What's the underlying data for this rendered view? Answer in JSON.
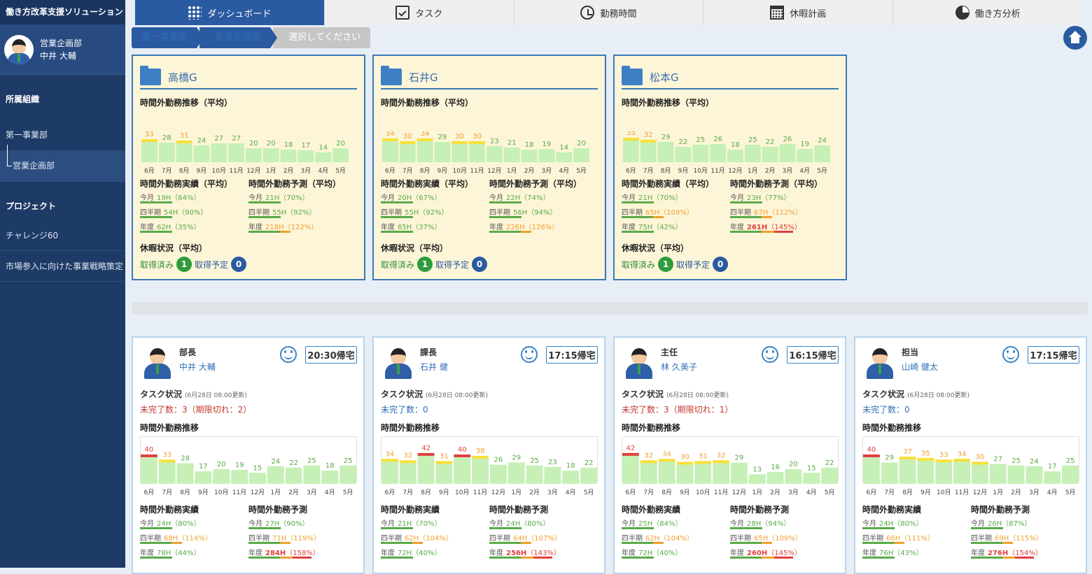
{
  "app": {
    "title": "働き方改革支援ソリューション"
  },
  "user": {
    "dept": "営業企画部",
    "name": "中井 大輔"
  },
  "sidebar": {
    "org_heading": "所属組織",
    "org_items": [
      {
        "label": "第一事業部"
      },
      {
        "label": "営業企画部"
      }
    ],
    "project_heading": "プロジェクト",
    "project_items": [
      {
        "label": "チャレンジ60"
      },
      {
        "label": "市場参入に向けた事業戦略策定"
      }
    ]
  },
  "tabs": [
    {
      "label": "ダッシュボード",
      "icon": "grid-icon"
    },
    {
      "label": "タスク",
      "icon": "task-icon"
    },
    {
      "label": "勤務時間",
      "icon": "clock-icon"
    },
    {
      "label": "休暇計画",
      "icon": "calendar-icon"
    },
    {
      "label": "働き方分析",
      "icon": "pie-chart-icon"
    }
  ],
  "breadcrumb": [
    "第一事業部",
    "営業企画部",
    "選択してください"
  ],
  "labels": {
    "trend_avg": "時間外勤務推移（平均）",
    "actual_avg": "時間外勤務実績（平均）",
    "forecast_avg": "時間外勤務予測（平均）",
    "vacation_avg": "休暇状況（平均）",
    "taken": "取得済み",
    "planned": "取得予定",
    "task_status": "タスク状況",
    "updated": "(6月28日 08:00更新)",
    "trend": "時間外勤務推移",
    "actual": "時間外勤務実績",
    "forecast": "時間外勤務予測",
    "month": "今月",
    "quarter": "四半期",
    "year": "年度"
  },
  "months": [
    "6月",
    "7月",
    "8月",
    "9月",
    "10月",
    "11月",
    "12月",
    "1月",
    "2月",
    "3月",
    "4月",
    "5月"
  ],
  "colors": {
    "green": "#5aaa4a",
    "orange": "#f0a030",
    "red": "#e04040",
    "bar_light": "#c6f0b6",
    "accent": "#2a5aa0"
  },
  "groups": [
    {
      "name": "高橋G",
      "chart_data": {
        "type": "bar",
        "categories": [
          "6月",
          "7月",
          "8月",
          "9月",
          "10月",
          "11月",
          "12月",
          "1月",
          "2月",
          "3月",
          "4月",
          "5月"
        ],
        "values": [
          33,
          28,
          31,
          24,
          27,
          27,
          20,
          20,
          18,
          17,
          14,
          20
        ]
      },
      "actual": [
        {
          "p": "今月",
          "v": "19H",
          "r": "（64%）",
          "lv": "g"
        },
        {
          "p": "四半期",
          "v": "54H",
          "r": "（90%）",
          "lv": "g"
        },
        {
          "p": "年度",
          "v": "62H",
          "r": "（35%）",
          "lv": "g"
        }
      ],
      "forecast": [
        {
          "p": "今月",
          "v": "21H",
          "r": "（70%）",
          "lv": "g"
        },
        {
          "p": "四半期",
          "v": "55H",
          "r": "（92%）",
          "lv": "g"
        },
        {
          "p": "年度",
          "v": "218H",
          "r": "（122%）",
          "lv": "o"
        }
      ],
      "taken": "1",
      "planned": "0"
    },
    {
      "name": "石井G",
      "chart_data": {
        "type": "bar",
        "categories": [
          "6月",
          "7月",
          "8月",
          "9月",
          "10月",
          "11月",
          "12月",
          "1月",
          "2月",
          "3月",
          "4月",
          "5月"
        ],
        "values": [
          34,
          30,
          34,
          29,
          30,
          30,
          23,
          21,
          18,
          19,
          14,
          20
        ]
      },
      "actual": [
        {
          "p": "今月",
          "v": "20H",
          "r": "（67%）",
          "lv": "g"
        },
        {
          "p": "四半期",
          "v": "55H",
          "r": "（92%）",
          "lv": "g"
        },
        {
          "p": "年度",
          "v": "65H",
          "r": "（37%）",
          "lv": "g"
        }
      ],
      "forecast": [
        {
          "p": "今月",
          "v": "22H",
          "r": "（74%）",
          "lv": "g"
        },
        {
          "p": "四半期",
          "v": "56H",
          "r": "（94%）",
          "lv": "g"
        },
        {
          "p": "年度",
          "v": "226H",
          "r": "（126%）",
          "lv": "o"
        }
      ],
      "taken": "1",
      "planned": "0"
    },
    {
      "name": "松本G",
      "chart_data": {
        "type": "bar",
        "categories": [
          "6月",
          "7月",
          "8月",
          "9月",
          "10月",
          "11月",
          "12月",
          "1月",
          "2月",
          "3月",
          "4月",
          "5月"
        ],
        "values": [
          35,
          32,
          29,
          22,
          25,
          26,
          18,
          25,
          22,
          26,
          19,
          24
        ]
      },
      "actual": [
        {
          "p": "今月",
          "v": "21H",
          "r": "（70%）",
          "lv": "g"
        },
        {
          "p": "四半期",
          "v": "65H",
          "r": "（109%）",
          "lv": "o"
        },
        {
          "p": "年度",
          "v": "75H",
          "r": "（42%）",
          "lv": "g"
        }
      ],
      "forecast": [
        {
          "p": "今月",
          "v": "23H",
          "r": "（77%）",
          "lv": "g"
        },
        {
          "p": "四半期",
          "v": "67H",
          "r": "（112%）",
          "lv": "o"
        },
        {
          "p": "年度",
          "v": "261H",
          "r": "（145%）",
          "lv": "r"
        }
      ],
      "taken": "1",
      "planned": "0"
    }
  ],
  "people": [
    {
      "role": "部長",
      "name": "中井 大輔",
      "home_time": "20:30帰宅",
      "task_summary": "未完了数：3（期限切れ：2）",
      "task_alert": true,
      "chart_data": {
        "type": "bar",
        "categories": [
          "6月",
          "7月",
          "8月",
          "9月",
          "10月",
          "11月",
          "12月",
          "1月",
          "2月",
          "3月",
          "4月",
          "5月"
        ],
        "values": [
          40,
          33,
          28,
          17,
          20,
          19,
          15,
          24,
          22,
          25,
          18,
          25
        ]
      },
      "actual": [
        {
          "p": "今月",
          "v": "24H",
          "r": "（80%）",
          "lv": "g"
        },
        {
          "p": "四半期",
          "v": "68H",
          "r": "（114%）",
          "lv": "o"
        },
        {
          "p": "年度",
          "v": "78H",
          "r": "（44%）",
          "lv": "g"
        }
      ],
      "forecast": [
        {
          "p": "今月",
          "v": "27H",
          "r": "（90%）",
          "lv": "g"
        },
        {
          "p": "四半期",
          "v": "71H",
          "r": "（119%）",
          "lv": "o"
        },
        {
          "p": "年度",
          "v": "284H",
          "r": "（158%）",
          "lv": "r"
        }
      ]
    },
    {
      "role": "課長",
      "name": "石井 健",
      "home_time": "17:15帰宅",
      "task_summary": "未完了数：0",
      "task_alert": false,
      "chart_data": {
        "type": "bar",
        "categories": [
          "6月",
          "7月",
          "8月",
          "9月",
          "10月",
          "11月",
          "12月",
          "1月",
          "2月",
          "3月",
          "4月",
          "5月"
        ],
        "values": [
          34,
          32,
          42,
          31,
          40,
          38,
          26,
          29,
          25,
          23,
          18,
          22
        ]
      },
      "actual": [
        {
          "p": "今月",
          "v": "21H",
          "r": "（70%）",
          "lv": "g"
        },
        {
          "p": "四半期",
          "v": "62H",
          "r": "（104%）",
          "lv": "o"
        },
        {
          "p": "年度",
          "v": "72H",
          "r": "（40%）",
          "lv": "g"
        }
      ],
      "forecast": [
        {
          "p": "今月",
          "v": "24H",
          "r": "（80%）",
          "lv": "g"
        },
        {
          "p": "四半期",
          "v": "64H",
          "r": "（107%）",
          "lv": "o"
        },
        {
          "p": "年度",
          "v": "256H",
          "r": "（143%）",
          "lv": "r"
        }
      ]
    },
    {
      "role": "主任",
      "name": "林 久美子",
      "home_time": "16:15帰宅",
      "task_summary": "未完了数：3（期限切れ：1）",
      "task_alert": true,
      "chart_data": {
        "type": "bar",
        "categories": [
          "6月",
          "7月",
          "8月",
          "9月",
          "10月",
          "11月",
          "12月",
          "1月",
          "2月",
          "3月",
          "4月",
          "5月"
        ],
        "values": [
          42,
          32,
          34,
          30,
          31,
          32,
          29,
          13,
          16,
          20,
          15,
          22
        ]
      },
      "actual": [
        {
          "p": "今月",
          "v": "25H",
          "r": "（84%）",
          "lv": "g"
        },
        {
          "p": "四半期",
          "v": "62H",
          "r": "（104%）",
          "lv": "o"
        },
        {
          "p": "年度",
          "v": "72H",
          "r": "（40%）",
          "lv": "g"
        }
      ],
      "forecast": [
        {
          "p": "今月",
          "v": "28H",
          "r": "（94%）",
          "lv": "g"
        },
        {
          "p": "四半期",
          "v": "65H",
          "r": "（109%）",
          "lv": "o"
        },
        {
          "p": "年度",
          "v": "260H",
          "r": "（145%）",
          "lv": "r"
        }
      ]
    },
    {
      "role": "担当",
      "name": "山崎 健太",
      "home_time": "17:15帰宅",
      "task_summary": "未完了数：0",
      "task_alert": false,
      "chart_data": {
        "type": "bar",
        "categories": [
          "6月",
          "7月",
          "8月",
          "9月",
          "10月",
          "11月",
          "12月",
          "1月",
          "2月",
          "3月",
          "4月",
          "5月"
        ],
        "values": [
          40,
          29,
          37,
          35,
          33,
          34,
          30,
          27,
          25,
          24,
          17,
          25
        ]
      },
      "actual": [
        {
          "p": "今月",
          "v": "24H",
          "r": "（80%）",
          "lv": "g"
        },
        {
          "p": "四半期",
          "v": "66H",
          "r": "（111%）",
          "lv": "o"
        },
        {
          "p": "年度",
          "v": "76H",
          "r": "（43%）",
          "lv": "g"
        }
      ],
      "forecast": [
        {
          "p": "今月",
          "v": "26H",
          "r": "（87%）",
          "lv": "g"
        },
        {
          "p": "四半期",
          "v": "69H",
          "r": "（115%）",
          "lv": "o"
        },
        {
          "p": "年度",
          "v": "276H",
          "r": "（154%）",
          "lv": "r"
        }
      ]
    }
  ]
}
